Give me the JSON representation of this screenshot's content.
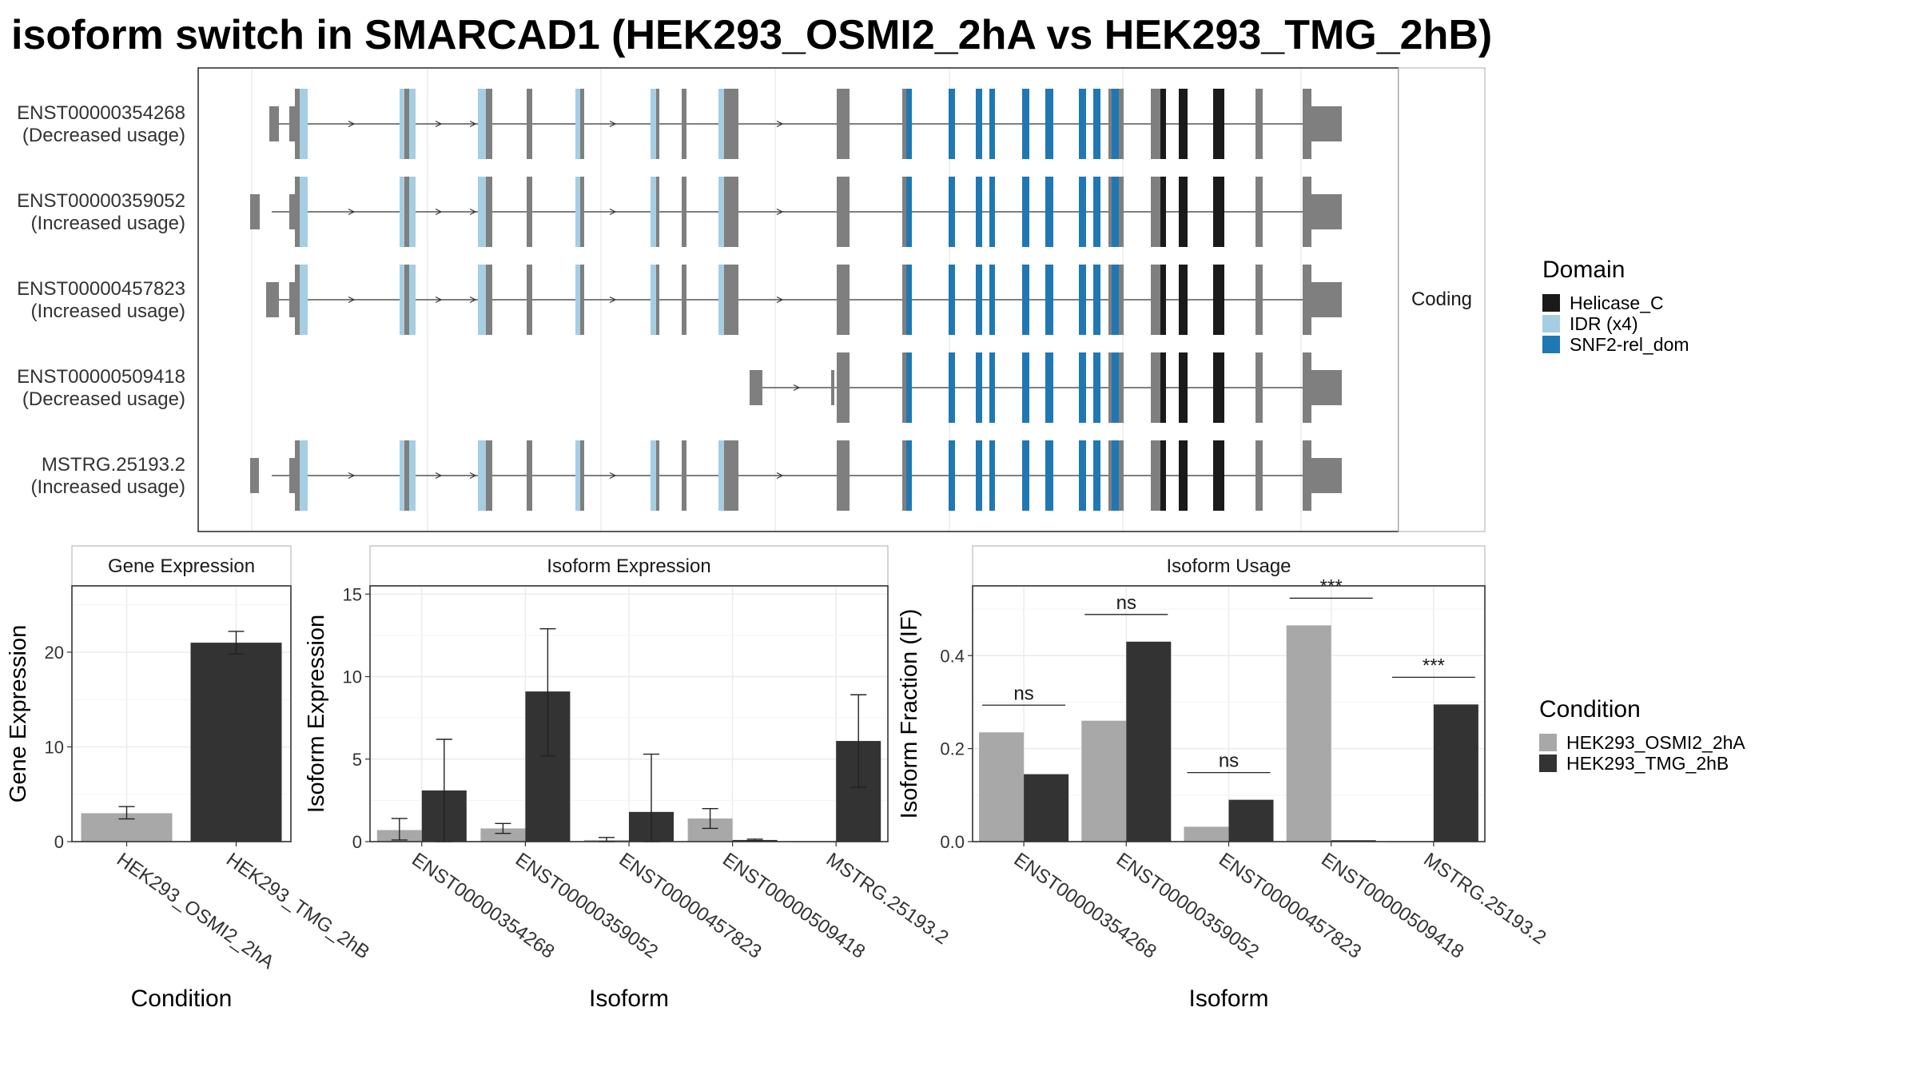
{
  "title": "isoform switch in SMARCAD1 (HEK293_OSMI2_2hA vs HEK293_TMG_2hB)",
  "colors": {
    "exon": "#7f7f7f",
    "helicase": "#1a1a1a",
    "idr": "#a6cee3",
    "snf2": "#1f78b4",
    "cond_a": "#a8a8a8",
    "cond_b": "#333333"
  },
  "chart_data": [
    {
      "type": "gene-structure",
      "panel": "transcript-structure",
      "strip_label": "Coding",
      "tracks": [
        {
          "id": "ENST00000354268",
          "usage": "(Decreased usage)"
        },
        {
          "id": "ENST00000359052",
          "usage": "(Increased usage)"
        },
        {
          "id": "ENST00000457823",
          "usage": "(Increased usage)"
        },
        {
          "id": "ENST00000509418",
          "usage": "(Decreased usage)"
        },
        {
          "id": "MSTRG.25193.2",
          "usage": "(Increased usage)"
        }
      ],
      "legend": {
        "title": "Domain",
        "items": [
          {
            "label": "Helicase_C",
            "color": "#1a1a1a"
          },
          {
            "label": "IDR (x4)",
            "color": "#a6cee3"
          },
          {
            "label": "SNF2-rel_dom",
            "color": "#1f78b4"
          }
        ]
      }
    },
    {
      "type": "bar",
      "panel": "gene-expression",
      "title": "Gene Expression",
      "xlabel": "Condition",
      "ylabel": "Gene Expression",
      "ylim": [
        0,
        27
      ],
      "yticks": [
        0,
        10,
        20
      ],
      "categories": [
        "HEK293_OSMI2_2hA",
        "HEK293_TMG_2hB"
      ],
      "values": [
        3.0,
        21.0
      ],
      "error": [
        [
          2.4,
          3.7
        ],
        [
          19.8,
          22.2
        ]
      ]
    },
    {
      "type": "bar",
      "panel": "isoform-expression",
      "title": "Isoform Expression",
      "xlabel": "Isoform",
      "ylabel": "Isoform Expression",
      "ylim": [
        0,
        15.5
      ],
      "yticks": [
        0,
        5,
        10,
        15
      ],
      "categories": [
        "ENST00000354268",
        "ENST00000359052",
        "ENST00000457823",
        "ENST00000509418",
        "MSTRG.25193.2"
      ],
      "series": [
        {
          "name": "HEK293_OSMI2_2hA",
          "values": [
            0.7,
            0.8,
            0.1,
            1.4,
            0.0
          ],
          "error": [
            [
              0.1,
              1.4
            ],
            [
              0.5,
              1.1
            ],
            [
              0.0,
              0.25
            ],
            [
              0.8,
              2.0
            ],
            [
              0.0,
              0.0
            ]
          ]
        },
        {
          "name": "HEK293_TMG_2hB",
          "values": [
            3.1,
            9.1,
            1.8,
            0.1,
            6.1
          ],
          "error": [
            [
              0.0,
              6.2
            ],
            [
              5.2,
              12.9
            ],
            [
              0.0,
              5.3
            ],
            [
              0.05,
              0.15
            ],
            [
              3.3,
              8.9
            ]
          ]
        }
      ]
    },
    {
      "type": "bar",
      "panel": "isoform-usage",
      "title": "Isoform Usage",
      "xlabel": "Isoform",
      "ylabel": "Isoform Fraction (IF)",
      "ylim": [
        0,
        0.55
      ],
      "yticks": [
        "0.0",
        "0.2",
        "0.4"
      ],
      "categories": [
        "ENST00000354268",
        "ENST00000359052",
        "ENST00000457823",
        "ENST00000509418",
        "MSTRG.25193.2"
      ],
      "series": [
        {
          "name": "HEK293_OSMI2_2hA",
          "values": [
            0.235,
            0.26,
            0.032,
            0.465,
            0.0
          ]
        },
        {
          "name": "HEK293_TMG_2hB",
          "values": [
            0.145,
            0.43,
            0.09,
            0.003,
            0.295
          ]
        }
      ],
      "significance": [
        "ns",
        "ns",
        "ns",
        "***",
        "***"
      ]
    }
  ],
  "condition_legend": {
    "title": "Condition",
    "items": [
      {
        "label": "HEK293_OSMI2_2hA",
        "color": "#a8a8a8"
      },
      {
        "label": "HEK293_TMG_2hB",
        "color": "#333333"
      }
    ]
  }
}
